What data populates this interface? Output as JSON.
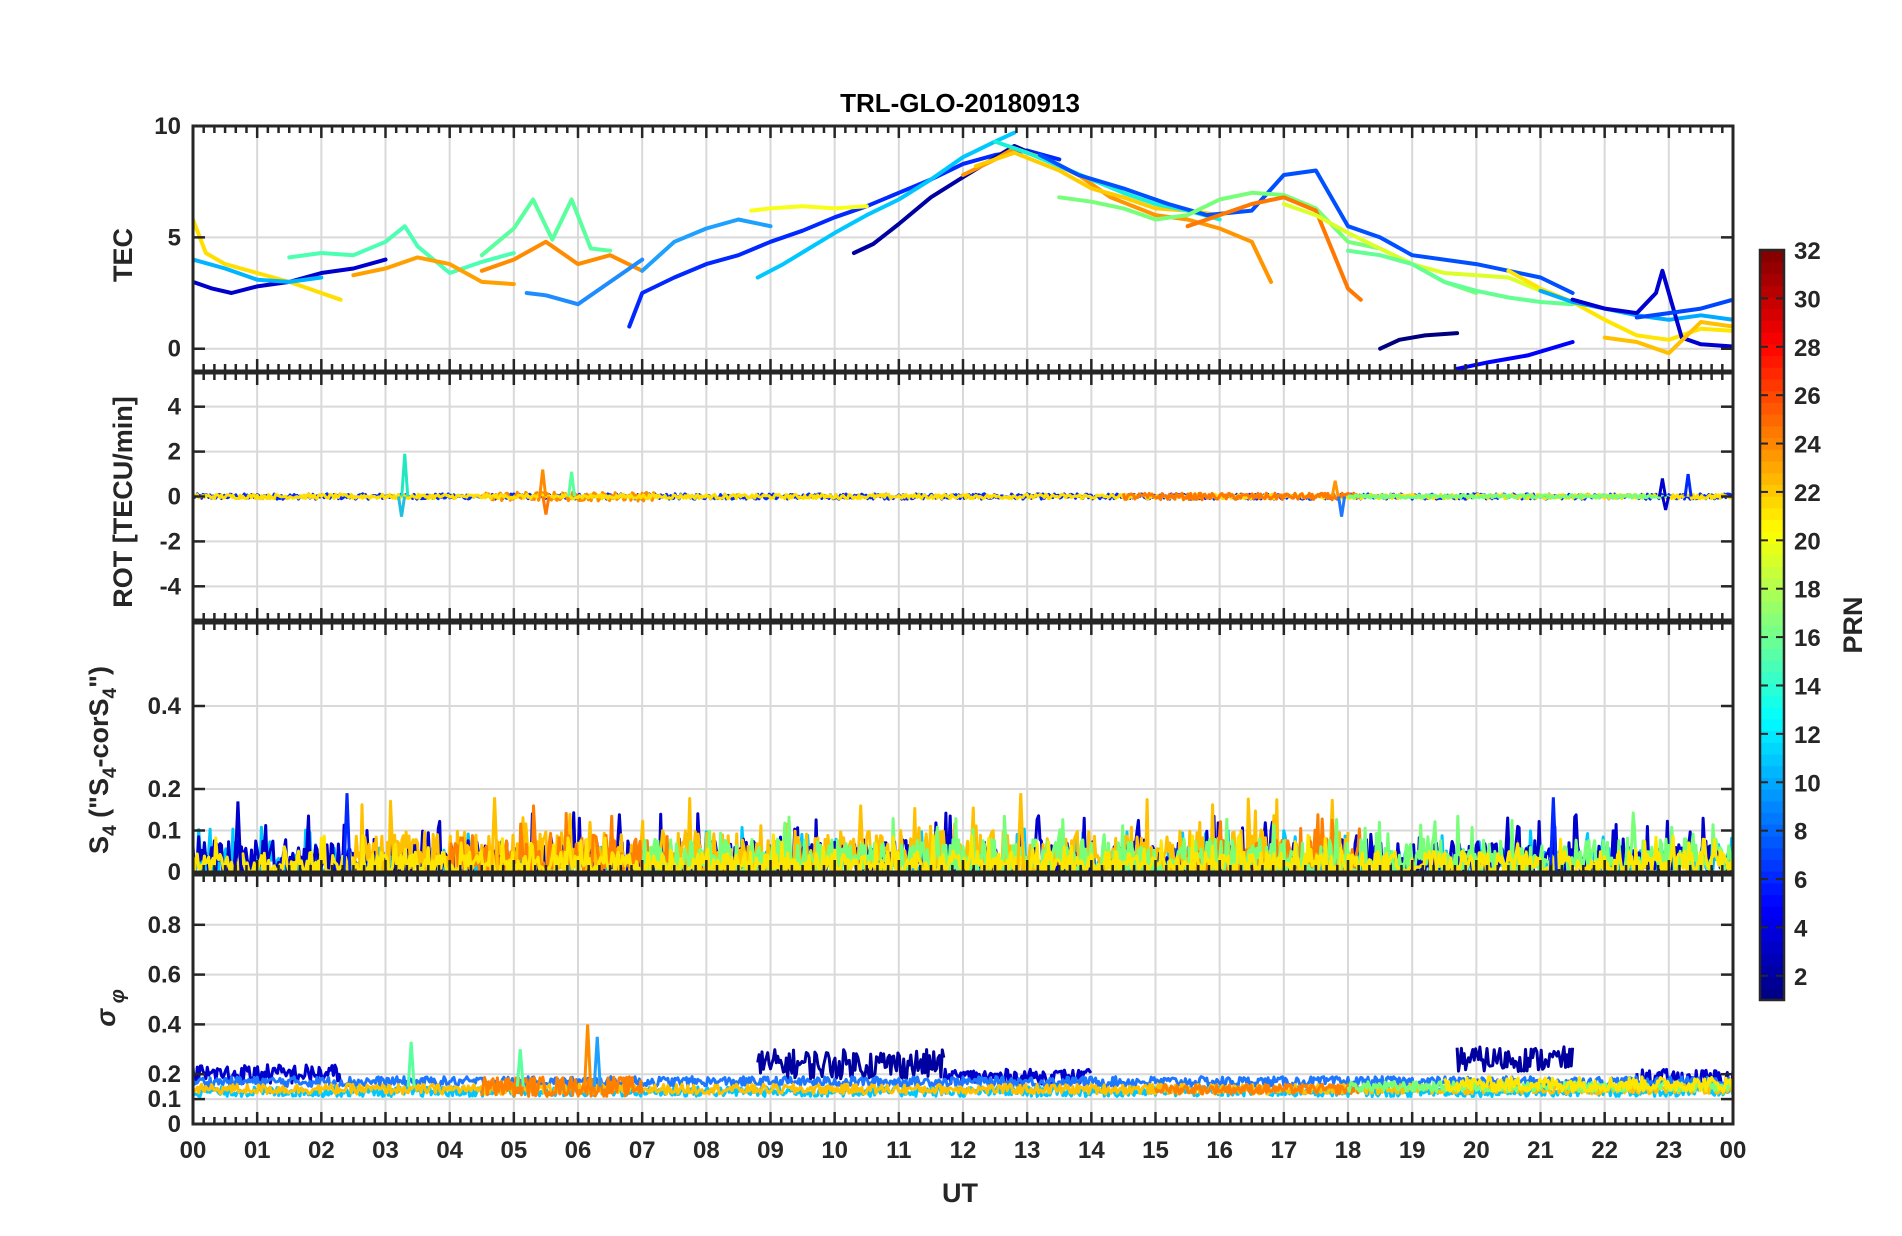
{
  "chart_data": [
    {
      "type": "line",
      "title": "TRL-GLO-20180913",
      "ylabel": "TEC",
      "ylim": [
        -1,
        10
      ],
      "yticks": [
        0,
        5,
        10
      ],
      "series": [
        {
          "color": "#0000cc",
          "x": [
            0,
            0.3,
            0.6,
            1,
            1.5,
            2,
            2.5,
            3
          ],
          "y": [
            3,
            2.7,
            2.5,
            2.8,
            3,
            3.4,
            3.6,
            4
          ]
        },
        {
          "color": "#ffdf00",
          "x": [
            0,
            0.2,
            0.5,
            1,
            1.5,
            2,
            2.3
          ],
          "y": [
            5.8,
            4.3,
            3.8,
            3.4,
            3,
            2.5,
            2.2
          ]
        },
        {
          "color": "#00b4ff",
          "x": [
            0,
            0.5,
            1,
            1.5,
            2
          ],
          "y": [
            4,
            3.6,
            3.1,
            3,
            3.2
          ]
        },
        {
          "color": "#4dffb3",
          "x": [
            1.5,
            2,
            2.5,
            3,
            3.3,
            3.5,
            4,
            4.5,
            5
          ],
          "y": [
            4.1,
            4.3,
            4.2,
            4.8,
            5.5,
            4.6,
            3.4,
            3.9,
            4.3
          ]
        },
        {
          "color": "#ffa000",
          "x": [
            2.5,
            3,
            3.5,
            4,
            4.5,
            5
          ],
          "y": [
            3.3,
            3.6,
            4.1,
            3.8,
            3,
            2.9
          ]
        },
        {
          "color": "#5aff9e",
          "x": [
            4.5,
            5,
            5.3,
            5.6,
            5.9,
            6.2,
            6.5
          ],
          "y": [
            4.2,
            5.4,
            6.7,
            4.9,
            6.7,
            4.5,
            4.4
          ]
        },
        {
          "color": "#ff8c00",
          "x": [
            4.5,
            5,
            5.5,
            6,
            6.5,
            7
          ],
          "y": [
            3.5,
            4,
            4.8,
            3.8,
            4.2,
            3.5
          ]
        },
        {
          "color": "#1e8cff",
          "x": [
            5.2,
            5.5,
            6,
            6.5,
            7
          ],
          "y": [
            2.5,
            2.4,
            2,
            3,
            4
          ]
        },
        {
          "color": "#0028ff",
          "x": [
            6.8,
            7,
            7.5,
            8,
            8.5,
            9,
            9.5,
            10,
            10.5,
            11,
            11.5,
            12,
            12.5,
            13,
            13.5
          ],
          "y": [
            1,
            2.5,
            3.2,
            3.8,
            4.2,
            4.8,
            5.3,
            5.9,
            6.4,
            7,
            7.6,
            8.3,
            8.7,
            8.9,
            8.5
          ]
        },
        {
          "color": "#1ea0ff",
          "x": [
            7,
            7.5,
            8,
            8.5,
            9
          ],
          "y": [
            3.5,
            4.8,
            5.4,
            5.8,
            5.5
          ]
        },
        {
          "color": "#f7ff18",
          "x": [
            8.7,
            9,
            9.5,
            10,
            10.5
          ],
          "y": [
            6.2,
            6.3,
            6.4,
            6.3,
            6.4
          ]
        },
        {
          "color": "#00c8ff",
          "x": [
            8.8,
            9.2,
            9.6,
            10,
            10.5,
            11,
            11.5,
            12,
            12.5,
            12.8
          ],
          "y": [
            3.2,
            3.8,
            4.5,
            5.2,
            6,
            6.7,
            7.6,
            8.6,
            9.3,
            9.7
          ]
        },
        {
          "color": "#0000a0",
          "x": [
            10.3,
            10.6,
            11,
            11.5,
            12,
            12.4,
            12.8,
            13.2
          ],
          "y": [
            4.3,
            4.7,
            5.6,
            6.8,
            7.7,
            8.4,
            9.1,
            8.6
          ]
        },
        {
          "color": "#ff9600",
          "x": [
            12,
            12.5,
            12.8,
            13.2,
            13.8,
            14.3,
            15,
            15.5,
            16,
            16.5,
            16.8
          ],
          "y": [
            7.8,
            8.5,
            9,
            8.6,
            7.8,
            6.8,
            6,
            5.8,
            5.4,
            4.8,
            3
          ]
        },
        {
          "color": "#ffcc00",
          "x": [
            12.2,
            12.8,
            13.5,
            14,
            14.5,
            15,
            15.5,
            16
          ],
          "y": [
            8.2,
            8.8,
            8,
            7.2,
            6.8,
            6.3,
            6.2,
            6
          ]
        },
        {
          "color": "#18f0d8",
          "x": [
            12.5,
            13,
            13.5,
            14,
            14.5,
            15,
            15.5,
            16
          ],
          "y": [
            9.3,
            8.8,
            8.2,
            7.6,
            7,
            6.5,
            6.2,
            5.8
          ]
        },
        {
          "color": "#0050ff",
          "x": [
            13.2,
            13.8,
            14.5,
            15.2,
            15.8,
            16.5,
            17,
            17.5,
            18,
            18.5,
            19,
            20,
            21,
            21.5
          ],
          "y": [
            8.7,
            7.8,
            7.2,
            6.5,
            6,
            6.2,
            7.8,
            8,
            5.5,
            5,
            4.2,
            3.8,
            3.2,
            2.5
          ]
        },
        {
          "color": "#78ff7a",
          "x": [
            13.5,
            14,
            14.5,
            15,
            15.5,
            16,
            16.5,
            17,
            17.5,
            18,
            18.5,
            19,
            19.5,
            20
          ],
          "y": [
            6.8,
            6.6,
            6.3,
            5.8,
            6,
            6.7,
            7,
            6.9,
            6.3,
            4.8,
            4.5,
            3.8,
            3,
            2.5
          ]
        },
        {
          "color": "#ff7800",
          "x": [
            15.5,
            16,
            16.5,
            17,
            17.5,
            18,
            18.2
          ],
          "y": [
            5.5,
            6,
            6.5,
            6.8,
            6.2,
            2.7,
            2.2
          ]
        },
        {
          "color": "#dcff2a",
          "x": [
            17,
            17.5,
            18,
            18.5,
            19,
            19.5,
            20,
            20.5,
            21
          ],
          "y": [
            6.5,
            6,
            5.2,
            4.5,
            3.8,
            3.4,
            3.3,
            3.2,
            2.6
          ]
        },
        {
          "color": "#00007f",
          "x": [
            18.5,
            18.8,
            19.2,
            19.7
          ],
          "y": [
            0,
            0.4,
            0.6,
            0.7
          ]
        },
        {
          "color": "#0000ff",
          "x": [
            19.7,
            20.2,
            20.8,
            21.5
          ],
          "y": [
            -0.9,
            -0.6,
            -0.3,
            0.3
          ]
        },
        {
          "color": "#64ff92",
          "x": [
            18,
            18.5,
            19,
            19.5,
            20,
            20.5,
            21,
            21.5
          ],
          "y": [
            4.4,
            4.2,
            3.8,
            3,
            2.6,
            2.3,
            2.1,
            2
          ]
        },
        {
          "color": "#ffe600",
          "x": [
            20.5,
            21,
            21.5,
            22,
            22.5,
            23,
            23.5,
            24
          ],
          "y": [
            3.5,
            2.7,
            2.1,
            1.3,
            0.6,
            0.4,
            0.9,
            0.8
          ]
        },
        {
          "color": "#00aaff",
          "x": [
            21,
            21.5,
            22,
            22.5,
            23,
            23.5,
            24
          ],
          "y": [
            2.6,
            2.1,
            1.8,
            1.5,
            1.3,
            1.5,
            1.3
          ]
        },
        {
          "color": "#0000d0",
          "x": [
            21.5,
            22,
            22.5,
            22.8,
            22.9,
            23.2,
            23.5,
            24
          ],
          "y": [
            2.2,
            1.8,
            1.6,
            2.5,
            3.5,
            0.5,
            0.2,
            0.1
          ]
        },
        {
          "color": "#0046ff",
          "x": [
            22.5,
            23,
            23.5,
            24
          ],
          "y": [
            1.4,
            1.6,
            1.8,
            2.2
          ]
        },
        {
          "color": "#ffc000",
          "x": [
            22,
            22.5,
            23,
            23.5,
            24
          ],
          "y": [
            0.5,
            0.3,
            -0.2,
            1.2,
            1
          ]
        }
      ]
    },
    {
      "type": "line",
      "title": "",
      "ylabel": "ROT [TECU/min]",
      "ylim": [
        -5.5,
        5.5
      ],
      "yticks": [
        -4,
        -2,
        0,
        2,
        4
      ],
      "series": [],
      "noise_bands": [
        {
          "color": "#0028ff",
          "x_from": 0,
          "x_to": 24,
          "amplitude": 0.12
        },
        {
          "color": "#ff8c00",
          "x_from": 4.5,
          "x_to": 7.2,
          "amplitude": 0.2
        },
        {
          "color": "#ffdf00",
          "x_from": 0,
          "x_to": 24,
          "amplitude": 0.1
        },
        {
          "color": "#ff7800",
          "x_from": 14.5,
          "x_to": 18.2,
          "amplitude": 0.15
        },
        {
          "color": "#78ff7a",
          "x_from": 18,
          "x_to": 23,
          "amplitude": 0.08
        }
      ],
      "spikes": [
        {
          "x": 3.3,
          "y": 1.9,
          "color": "#22e8c0"
        },
        {
          "x": 3.25,
          "y": -0.9,
          "color": "#1ec0e0"
        },
        {
          "x": 5.45,
          "y": 1.2,
          "color": "#ff8c00"
        },
        {
          "x": 5.5,
          "y": -0.8,
          "color": "#ff7800"
        },
        {
          "x": 5.9,
          "y": 1.1,
          "color": "#5aff9e"
        },
        {
          "x": 17.8,
          "y": 0.7,
          "color": "#ff9600"
        },
        {
          "x": 17.9,
          "y": -0.9,
          "color": "#1e78ff"
        },
        {
          "x": 22.9,
          "y": 0.8,
          "color": "#0000cc"
        },
        {
          "x": 22.95,
          "y": -0.6,
          "color": "#0000cc"
        },
        {
          "x": 23.3,
          "y": 1,
          "color": "#0028ff"
        }
      ]
    },
    {
      "type": "line",
      "title": "",
      "ylabel": "S4 (\"S4-corS4\")",
      "ylim": [
        0,
        0.6
      ],
      "yticks": [
        0,
        0.1,
        0.2,
        0.4
      ],
      "series": [],
      "noise_bands": [
        {
          "color": "#00c8ff",
          "x_from": 0,
          "x_to": 24,
          "amplitude": 0.06
        },
        {
          "color": "#0000cc",
          "x_from": 0,
          "x_to": 24,
          "amplitude": 0.08
        },
        {
          "color": "#ffc000",
          "x_from": 2.5,
          "x_to": 18,
          "amplitude": 0.1
        },
        {
          "color": "#ff8000",
          "x_from": 4,
          "x_to": 7.5,
          "amplitude": 0.09
        },
        {
          "color": "#ff8000",
          "x_from": 15.5,
          "x_to": 18.2,
          "amplitude": 0.08
        },
        {
          "color": "#78ff7a",
          "x_from": 7,
          "x_to": 24,
          "amplitude": 0.08
        },
        {
          "color": "#ffe600",
          "x_from": 0,
          "x_to": 24,
          "amplitude": 0.05
        }
      ],
      "spikes": [
        {
          "x": 0.7,
          "y": 0.17,
          "color": "#0000cc"
        },
        {
          "x": 2.4,
          "y": 0.19,
          "color": "#0028ff"
        },
        {
          "x": 4.7,
          "y": 0.18,
          "color": "#ffc000"
        },
        {
          "x": 12.9,
          "y": 0.19,
          "color": "#ffc000"
        },
        {
          "x": 21.2,
          "y": 0.18,
          "color": "#0028ff"
        }
      ]
    },
    {
      "type": "line",
      "title": "",
      "ylabel": "σ φ",
      "xlabel": "UT",
      "ylim": [
        0,
        1
      ],
      "yticks": [
        0,
        0.1,
        0.2,
        0.4,
        0.6,
        0.8
      ],
      "xticks": [
        "00",
        "01",
        "02",
        "03",
        "04",
        "05",
        "06",
        "07",
        "08",
        "09",
        "10",
        "11",
        "12",
        "13",
        "14",
        "15",
        "16",
        "17",
        "18",
        "19",
        "20",
        "21",
        "22",
        "23",
        "00"
      ],
      "series": [],
      "noise_bands": [
        {
          "color": "#0000cc",
          "x_from": 0,
          "x_to": 2.3,
          "base": 0.2,
          "amplitude": 0.04
        },
        {
          "color": "#0000a0",
          "x_from": 8.8,
          "x_to": 11.7,
          "base": 0.24,
          "amplitude": 0.06
        },
        {
          "color": "#0000cc",
          "x_from": 11.7,
          "x_to": 14,
          "base": 0.19,
          "amplitude": 0.03
        },
        {
          "color": "#0000a0",
          "x_from": 19.7,
          "x_to": 21.5,
          "base": 0.26,
          "amplitude": 0.05
        },
        {
          "color": "#0000cc",
          "x_from": 22.5,
          "x_to": 24,
          "base": 0.18,
          "amplitude": 0.04
        },
        {
          "color": "#1e78ff",
          "x_from": 0,
          "x_to": 24,
          "base": 0.17,
          "amplitude": 0.02
        },
        {
          "color": "#00c8ff",
          "x_from": 0,
          "x_to": 24,
          "base": 0.13,
          "amplitude": 0.02
        },
        {
          "color": "#ffc000",
          "x_from": 0,
          "x_to": 24,
          "base": 0.14,
          "amplitude": 0.02
        },
        {
          "color": "#ff8000",
          "x_from": 4.5,
          "x_to": 7,
          "base": 0.15,
          "amplitude": 0.04
        },
        {
          "color": "#ff8000",
          "x_from": 15,
          "x_to": 18.2,
          "base": 0.14,
          "amplitude": 0.02
        },
        {
          "color": "#78ff7a",
          "x_from": 18,
          "x_to": 24,
          "base": 0.15,
          "amplitude": 0.02
        },
        {
          "color": "#ffe600",
          "x_from": 19.5,
          "x_to": 24,
          "base": 0.16,
          "amplitude": 0.03
        }
      ],
      "spikes": [
        {
          "x": 3.4,
          "y": 0.33,
          "color": "#5aff9e"
        },
        {
          "x": 5.1,
          "y": 0.3,
          "color": "#5aff9e"
        },
        {
          "x": 6.15,
          "y": 0.4,
          "color": "#ff8c00"
        },
        {
          "x": 6.3,
          "y": 0.35,
          "color": "#1ea0ff"
        }
      ]
    },
    {
      "type": "heatmap",
      "title": "",
      "colorbar_label": "PRN",
      "clim": [
        1,
        32
      ],
      "ticks": [
        "2",
        "4",
        "6",
        "8",
        "10",
        "12",
        "14",
        "16",
        "18",
        "20",
        "22",
        "24",
        "26",
        "28",
        "30",
        "32"
      ],
      "colormap": "jet"
    }
  ]
}
